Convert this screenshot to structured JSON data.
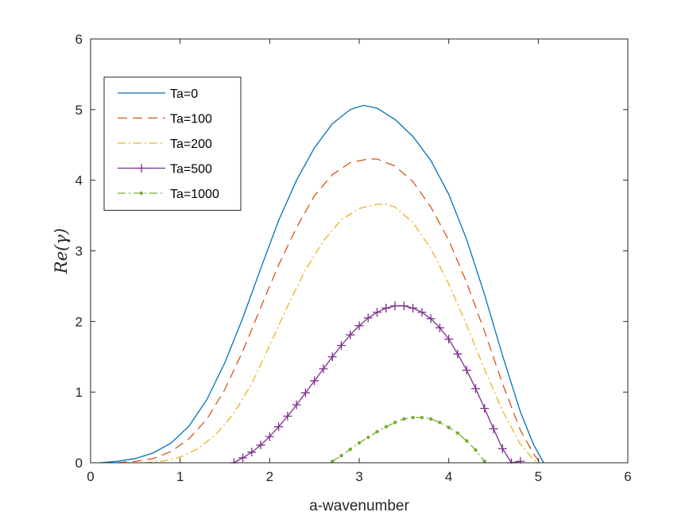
{
  "chart_data": {
    "type": "line",
    "title": "",
    "xlabel": "a-wavenumber",
    "ylabel": "Re(γ)",
    "xlim": [
      0,
      6
    ],
    "ylim": [
      0,
      6
    ],
    "xticks": [
      "0",
      "1",
      "2",
      "3",
      "4",
      "5",
      "6"
    ],
    "yticks": [
      "0",
      "1",
      "2",
      "3",
      "4",
      "5",
      "6"
    ],
    "grid": false,
    "legend_position": "top-left",
    "series": [
      {
        "name": "Ta=0",
        "color": "#0072BD",
        "style": "solid",
        "marker": "none",
        "x": [
          0.1,
          0.3,
          0.5,
          0.7,
          0.9,
          1.1,
          1.3,
          1.5,
          1.7,
          1.9,
          2.1,
          2.3,
          2.5,
          2.7,
          2.9,
          3.05,
          3.2,
          3.4,
          3.6,
          3.8,
          4.0,
          4.2,
          4.4,
          4.6,
          4.8,
          4.95,
          5.06
        ],
        "y": [
          0.0,
          0.02,
          0.06,
          0.14,
          0.28,
          0.52,
          0.9,
          1.42,
          2.05,
          2.75,
          3.43,
          4.0,
          4.46,
          4.8,
          5.0,
          5.06,
          5.02,
          4.86,
          4.62,
          4.28,
          3.8,
          3.16,
          2.38,
          1.52,
          0.72,
          0.25,
          0.0
        ]
      },
      {
        "name": "Ta=100",
        "color": "#D95319",
        "style": "dashed",
        "marker": "none",
        "x": [
          0.3,
          0.5,
          0.7,
          0.9,
          1.1,
          1.3,
          1.5,
          1.7,
          1.9,
          2.1,
          2.3,
          2.5,
          2.7,
          2.9,
          3.1,
          3.2,
          3.4,
          3.6,
          3.8,
          4.0,
          4.2,
          4.4,
          4.6,
          4.8,
          4.95,
          5.02
        ],
        "y": [
          0.0,
          0.02,
          0.06,
          0.16,
          0.34,
          0.62,
          1.04,
          1.58,
          2.2,
          2.8,
          3.33,
          3.78,
          4.08,
          4.25,
          4.3,
          4.3,
          4.2,
          3.98,
          3.62,
          3.15,
          2.55,
          1.86,
          1.12,
          0.46,
          0.12,
          0.0
        ]
      },
      {
        "name": "Ta=200",
        "color": "#EDB120",
        "style": "dashdot",
        "marker": "none",
        "x": [
          0.6,
          0.8,
          1.0,
          1.2,
          1.4,
          1.6,
          1.8,
          2.0,
          2.2,
          2.4,
          2.6,
          2.8,
          3.0,
          3.2,
          3.3,
          3.4,
          3.6,
          3.8,
          4.0,
          4.2,
          4.4,
          4.6,
          4.8,
          4.95,
          5.0
        ],
        "y": [
          0.0,
          0.02,
          0.08,
          0.2,
          0.4,
          0.7,
          1.12,
          1.66,
          2.22,
          2.73,
          3.14,
          3.44,
          3.6,
          3.66,
          3.66,
          3.62,
          3.4,
          3.03,
          2.53,
          1.95,
          1.32,
          0.74,
          0.26,
          0.04,
          0.0
        ]
      },
      {
        "name": "Ta=500",
        "color": "#7E2F8E",
        "style": "solid",
        "marker": "plus",
        "x": [
          1.6,
          1.7,
          1.8,
          1.9,
          2.0,
          2.1,
          2.2,
          2.3,
          2.4,
          2.5,
          2.6,
          2.7,
          2.8,
          2.9,
          3.0,
          3.1,
          3.2,
          3.3,
          3.4,
          3.5,
          3.6,
          3.7,
          3.8,
          3.9,
          4.0,
          4.1,
          4.2,
          4.3,
          4.4,
          4.5,
          4.6,
          4.7,
          4.8
        ],
        "y": [
          0.0,
          0.07,
          0.15,
          0.25,
          0.37,
          0.51,
          0.66,
          0.82,
          0.99,
          1.16,
          1.33,
          1.5,
          1.66,
          1.81,
          1.94,
          2.05,
          2.13,
          2.19,
          2.22,
          2.22,
          2.19,
          2.13,
          2.04,
          1.91,
          1.75,
          1.54,
          1.31,
          1.05,
          0.77,
          0.48,
          0.2,
          -0.08,
          0.02
        ]
      },
      {
        "name": "Ta=1000",
        "color": "#77AC30",
        "style": "dashdot",
        "marker": "dot",
        "x": [
          2.7,
          2.8,
          2.9,
          3.0,
          3.1,
          3.2,
          3.3,
          3.4,
          3.5,
          3.6,
          3.7,
          3.8,
          3.9,
          4.0,
          4.1,
          4.2,
          4.3,
          4.4
        ],
        "y": [
          0.02,
          0.1,
          0.19,
          0.28,
          0.36,
          0.44,
          0.51,
          0.57,
          0.62,
          0.64,
          0.64,
          0.62,
          0.57,
          0.5,
          0.42,
          0.31,
          0.18,
          0.02
        ]
      }
    ]
  }
}
